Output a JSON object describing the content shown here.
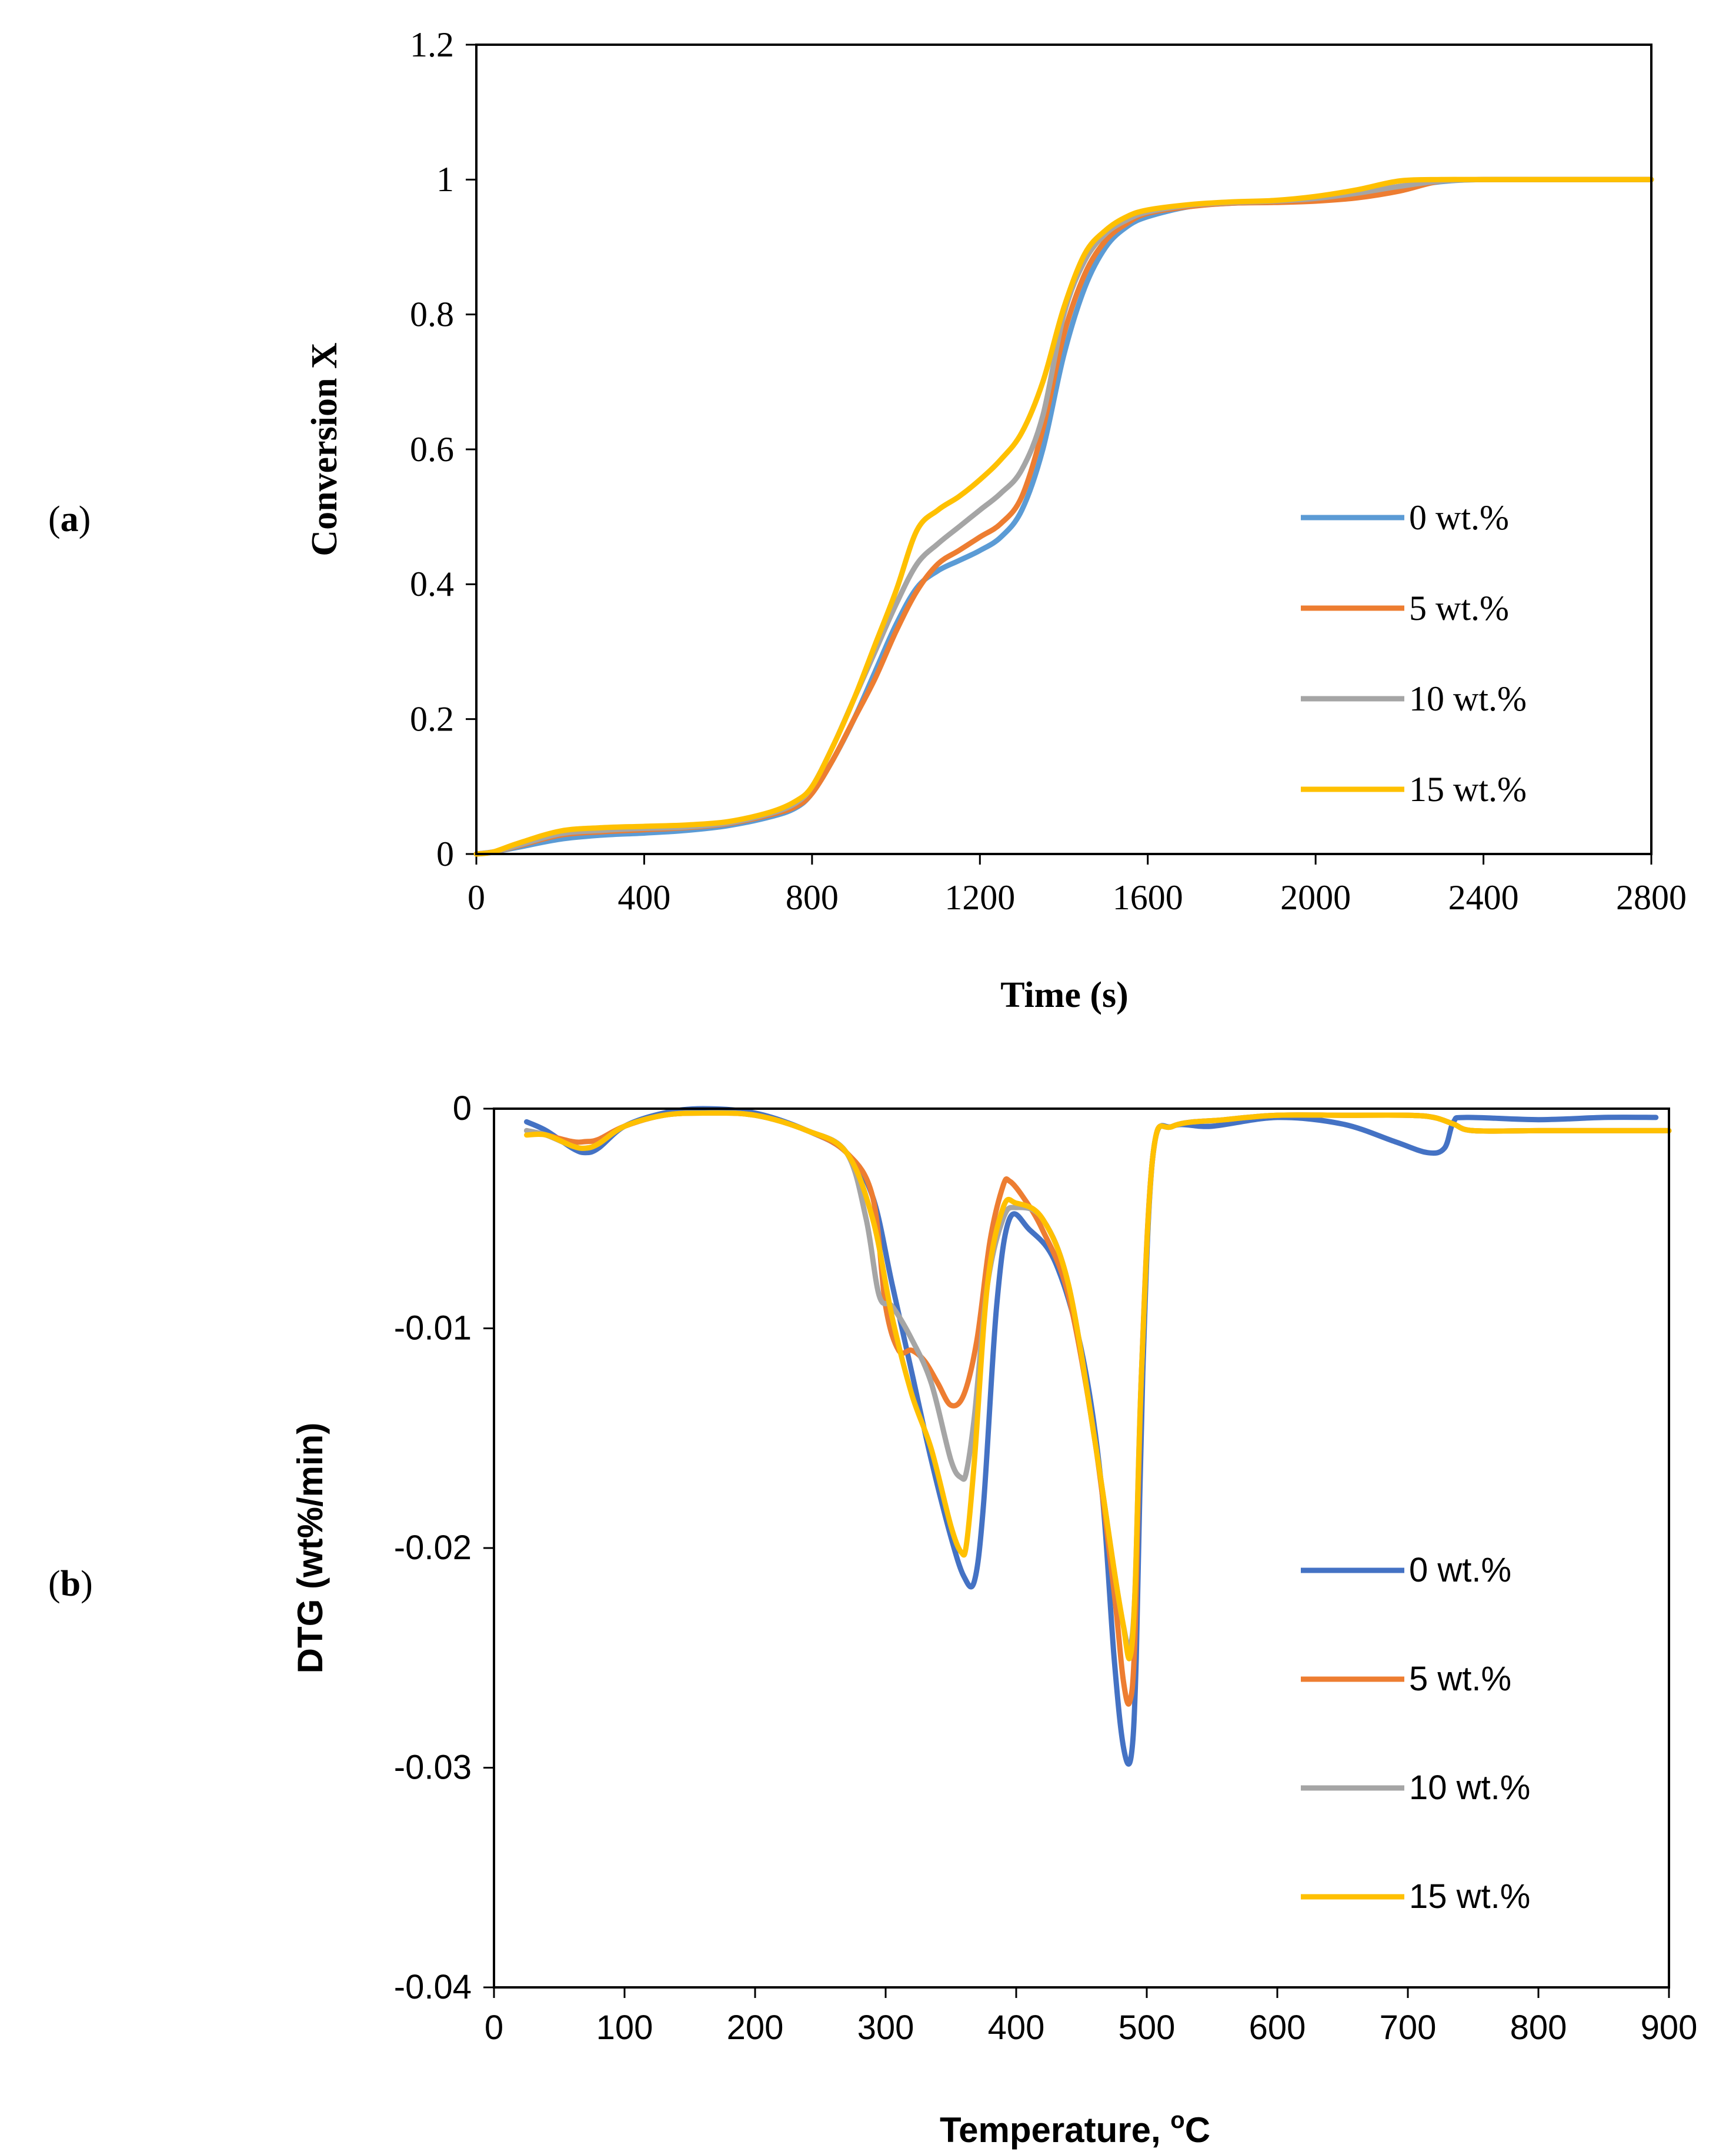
{
  "panels": [
    {
      "open": "(",
      "letter": "a",
      "close": ")"
    },
    {
      "open": "(",
      "letter": "b",
      "close": ")"
    }
  ],
  "colors": {
    "s0": "#5B9BD5",
    "s0b": "#4472C4",
    "s5": "#ED7D31",
    "s10": "#A5A5A5",
    "s15": "#FFC000"
  },
  "chart_data": [
    {
      "type": "line",
      "xlabel": "Time (s)",
      "ylabel": "Conversion X",
      "xlim": [
        0,
        2800
      ],
      "ylim": [
        0,
        1.2
      ],
      "x_ticks": [
        "0",
        "400",
        "800",
        "1200",
        "1600",
        "2000",
        "2400",
        "2800"
      ],
      "y_ticks": [
        "0",
        "0.2",
        "0.4",
        "0.6",
        "0.8",
        "1",
        "1.2"
      ],
      "legend_position": "right",
      "series": [
        {
          "name": "0 wt.%",
          "color": "#5B9BD5",
          "x": [
            0,
            40,
            100,
            200,
            300,
            400,
            500,
            600,
            700,
            760,
            800,
            850,
            900,
            950,
            1000,
            1050,
            1100,
            1150,
            1200,
            1250,
            1300,
            1350,
            1400,
            1450,
            1500,
            1550,
            1600,
            1700,
            1800,
            1900,
            2000,
            2100,
            2200,
            2300,
            2400,
            2600,
            2800
          ],
          "y": [
            0,
            0.003,
            0.01,
            0.022,
            0.028,
            0.031,
            0.035,
            0.042,
            0.055,
            0.068,
            0.09,
            0.14,
            0.2,
            0.27,
            0.34,
            0.395,
            0.42,
            0.435,
            0.45,
            0.47,
            0.51,
            0.6,
            0.74,
            0.84,
            0.9,
            0.93,
            0.945,
            0.96,
            0.965,
            0.967,
            0.97,
            0.978,
            0.988,
            0.997,
            1.0,
            1.0,
            1.0
          ]
        },
        {
          "name": "5 wt.%",
          "color": "#ED7D31",
          "x": [
            0,
            40,
            100,
            200,
            300,
            400,
            500,
            600,
            700,
            760,
            800,
            850,
            900,
            950,
            1000,
            1050,
            1100,
            1150,
            1200,
            1250,
            1300,
            1350,
            1400,
            1450,
            1500,
            1550,
            1600,
            1700,
            1800,
            1900,
            2000,
            2100,
            2200,
            2300,
            2400,
            2600,
            2800
          ],
          "y": [
            0,
            0.003,
            0.012,
            0.028,
            0.033,
            0.036,
            0.039,
            0.045,
            0.058,
            0.07,
            0.09,
            0.14,
            0.2,
            0.26,
            0.33,
            0.39,
            0.43,
            0.45,
            0.47,
            0.49,
            0.53,
            0.63,
            0.77,
            0.86,
            0.91,
            0.935,
            0.95,
            0.96,
            0.965,
            0.966,
            0.968,
            0.973,
            0.983,
            0.998,
            1.0,
            1.0,
            1.0
          ]
        },
        {
          "name": "10 wt.%",
          "color": "#A5A5A5",
          "x": [
            0,
            40,
            100,
            200,
            300,
            400,
            500,
            600,
            700,
            760,
            800,
            850,
            900,
            950,
            1000,
            1050,
            1100,
            1150,
            1200,
            1250,
            1300,
            1350,
            1400,
            1450,
            1500,
            1550,
            1600,
            1700,
            1800,
            1900,
            2000,
            2100,
            2200,
            2300,
            2400,
            2600,
            2800
          ],
          "y": [
            0,
            0.003,
            0.013,
            0.03,
            0.035,
            0.038,
            0.04,
            0.046,
            0.06,
            0.075,
            0.1,
            0.16,
            0.23,
            0.3,
            0.37,
            0.43,
            0.46,
            0.485,
            0.51,
            0.535,
            0.57,
            0.65,
            0.8,
            0.88,
            0.92,
            0.94,
            0.952,
            0.962,
            0.966,
            0.968,
            0.972,
            0.98,
            0.99,
            0.998,
            1.0,
            1.0,
            1.0
          ]
        },
        {
          "name": "15 wt.%",
          "color": "#FFC000",
          "x": [
            0,
            40,
            100,
            200,
            300,
            400,
            500,
            600,
            700,
            760,
            800,
            850,
            900,
            950,
            1000,
            1050,
            1100,
            1150,
            1200,
            1250,
            1300,
            1350,
            1400,
            1450,
            1500,
            1550,
            1600,
            1700,
            1800,
            1900,
            2000,
            2100,
            2200,
            2300,
            2400,
            2600,
            2800
          ],
          "y": [
            0,
            0.003,
            0.016,
            0.034,
            0.039,
            0.041,
            0.043,
            0.048,
            0.062,
            0.078,
            0.1,
            0.16,
            0.23,
            0.31,
            0.39,
            0.48,
            0.51,
            0.53,
            0.555,
            0.585,
            0.625,
            0.7,
            0.81,
            0.89,
            0.925,
            0.945,
            0.955,
            0.963,
            0.967,
            0.969,
            0.975,
            0.985,
            0.998,
            1.0,
            1.0,
            1.0,
            1.0
          ]
        }
      ]
    },
    {
      "type": "line",
      "xlabel_main": "Temperature, ",
      "xlabel_sup": "o",
      "xlabel_end": "C",
      "ylabel": "DTG (wt%/min)",
      "xlim": [
        0,
        900
      ],
      "ylim": [
        -0.04,
        0
      ],
      "x_ticks": [
        "0",
        "100",
        "200",
        "300",
        "400",
        "500",
        "600",
        "700",
        "800",
        "900"
      ],
      "y_ticks": [
        "0",
        "-0.01",
        "-0.02",
        "-0.03",
        "-0.04"
      ],
      "legend_position": "right",
      "series": [
        {
          "name": "0 wt.%",
          "color": "#4472C4",
          "x": [
            25,
            40,
            60,
            70,
            80,
            100,
            130,
            160,
            200,
            240,
            270,
            290,
            305,
            320,
            335,
            350,
            360,
            368,
            375,
            385,
            395,
            410,
            430,
            450,
            465,
            475,
            482,
            488,
            492,
            497,
            505,
            520,
            550,
            600,
            650,
            690,
            715,
            728,
            735,
            745,
            800,
            850,
            890
          ],
          "y": [
            -0.0006,
            -0.001,
            -0.0018,
            -0.002,
            -0.0018,
            -0.0008,
            -0.0002,
            0,
            -0.0002,
            -0.001,
            -0.002,
            -0.004,
            -0.008,
            -0.012,
            -0.016,
            -0.0195,
            -0.0213,
            -0.0215,
            -0.018,
            -0.009,
            -0.005,
            -0.0055,
            -0.007,
            -0.011,
            -0.017,
            -0.025,
            -0.029,
            -0.0295,
            -0.025,
            -0.012,
            -0.002,
            -0.0008,
            -0.0008,
            -0.0004,
            -0.0007,
            -0.0015,
            -0.002,
            -0.0018,
            -0.0006,
            -0.0004,
            -0.0005,
            -0.0004,
            -0.0004
          ]
        },
        {
          "name": "5 wt.%",
          "color": "#ED7D31",
          "x": [
            25,
            40,
            60,
            70,
            80,
            100,
            130,
            160,
            200,
            240,
            270,
            290,
            300,
            310,
            320,
            330,
            340,
            350,
            360,
            370,
            380,
            390,
            395,
            405,
            420,
            440,
            460,
            475,
            482,
            487,
            491,
            496,
            505,
            520,
            560,
            600,
            650,
            700,
            720,
            735,
            750,
            800,
            850,
            900
          ],
          "y": [
            -0.001,
            -0.0012,
            -0.0015,
            -0.0015,
            -0.0014,
            -0.0008,
            -0.0003,
            -0.0002,
            -0.0003,
            -0.001,
            -0.002,
            -0.004,
            -0.009,
            -0.011,
            -0.011,
            -0.0115,
            -0.0125,
            -0.0135,
            -0.013,
            -0.0105,
            -0.006,
            -0.0035,
            -0.0033,
            -0.004,
            -0.0055,
            -0.0085,
            -0.015,
            -0.022,
            -0.026,
            -0.027,
            -0.024,
            -0.012,
            -0.002,
            -0.0008,
            -0.0005,
            -0.0003,
            -0.0003,
            -0.0003,
            -0.0004,
            -0.0007,
            -0.001,
            -0.001,
            -0.001,
            -0.001
          ]
        },
        {
          "name": "10 wt.%",
          "color": "#A5A5A5",
          "x": [
            25,
            40,
            60,
            70,
            80,
            100,
            130,
            160,
            200,
            240,
            270,
            285,
            295,
            305,
            320,
            335,
            350,
            358,
            362,
            368,
            378,
            390,
            400,
            420,
            440,
            460,
            475,
            482,
            487,
            491,
            496,
            505,
            520,
            560,
            600,
            650,
            700,
            720,
            735,
            750,
            800,
            850,
            900
          ],
          "y": [
            -0.001,
            -0.0012,
            -0.0017,
            -0.0018,
            -0.0016,
            -0.0008,
            -0.0003,
            -0.0002,
            -0.0003,
            -0.001,
            -0.002,
            -0.005,
            -0.0085,
            -0.009,
            -0.0105,
            -0.0125,
            -0.016,
            -0.0168,
            -0.0165,
            -0.014,
            -0.008,
            -0.005,
            -0.0045,
            -0.005,
            -0.008,
            -0.015,
            -0.021,
            -0.0235,
            -0.0245,
            -0.022,
            -0.012,
            -0.002,
            -0.0008,
            -0.0005,
            -0.0003,
            -0.0003,
            -0.0003,
            -0.0004,
            -0.0007,
            -0.001,
            -0.001,
            -0.001,
            -0.001
          ]
        },
        {
          "name": "15 wt.%",
          "color": "#FFC000",
          "x": [
            25,
            40,
            60,
            70,
            80,
            100,
            130,
            160,
            200,
            240,
            270,
            290,
            305,
            320,
            335,
            350,
            358,
            362,
            368,
            378,
            390,
            400,
            420,
            440,
            460,
            475,
            482,
            487,
            491,
            496,
            505,
            520,
            560,
            600,
            650,
            700,
            720,
            735,
            750,
            800,
            850,
            900
          ],
          "y": [
            -0.0012,
            -0.0012,
            -0.0017,
            -0.0018,
            -0.0016,
            -0.0008,
            -0.0003,
            -0.0002,
            -0.0003,
            -0.001,
            -0.002,
            -0.005,
            -0.0095,
            -0.013,
            -0.0155,
            -0.019,
            -0.0202,
            -0.0198,
            -0.016,
            -0.008,
            -0.0045,
            -0.0043,
            -0.005,
            -0.008,
            -0.015,
            -0.021,
            -0.0235,
            -0.025,
            -0.022,
            -0.012,
            -0.002,
            -0.0008,
            -0.0005,
            -0.0003,
            -0.0003,
            -0.0003,
            -0.0004,
            -0.0007,
            -0.001,
            -0.001,
            -0.001,
            -0.001
          ]
        }
      ]
    }
  ]
}
